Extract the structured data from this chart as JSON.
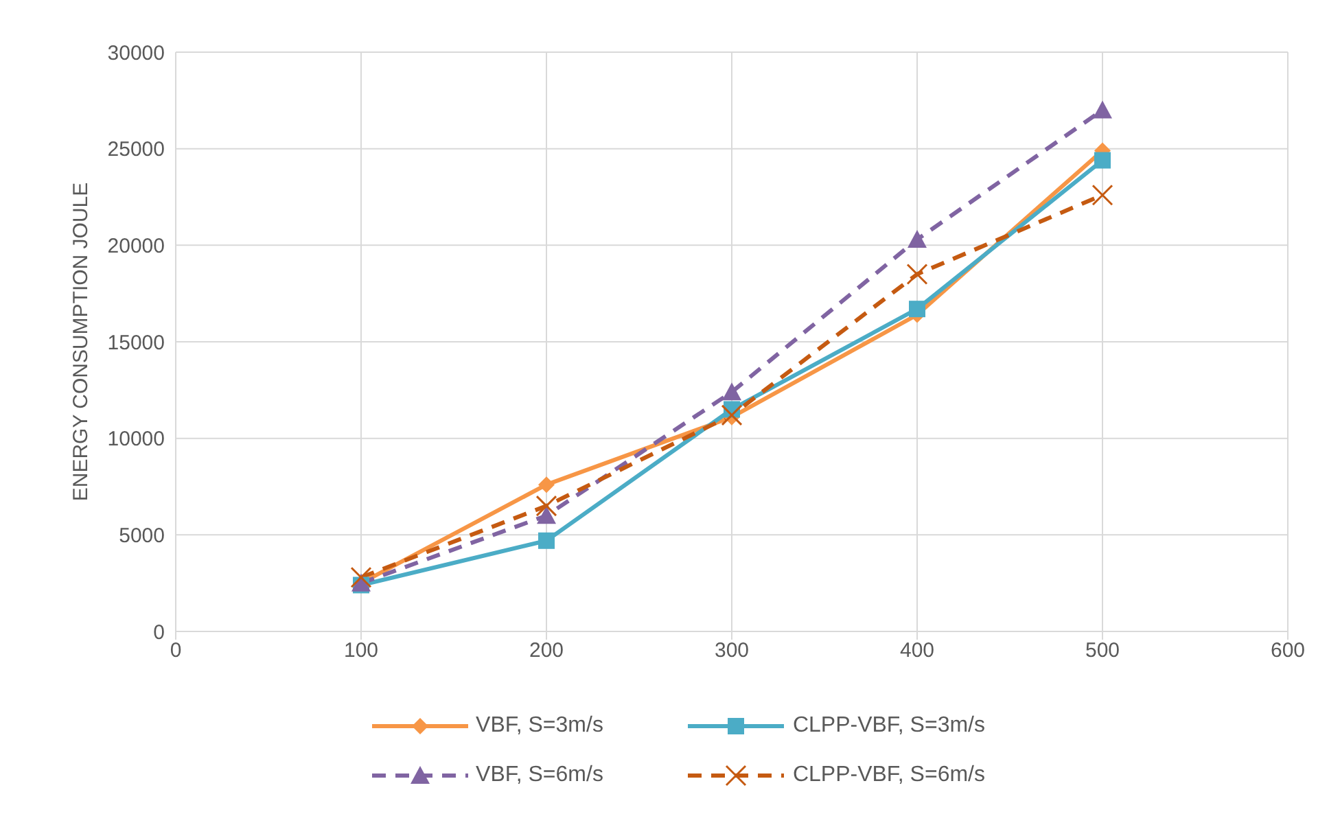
{
  "chart_data": {
    "type": "line",
    "ylabel": "ENERGY CONSUMPTION JOULE",
    "x": [
      100,
      200,
      300,
      400,
      500
    ],
    "series": [
      {
        "name": "VBF, S=3m/s",
        "color": "#f79646",
        "values": [
          2500,
          7600,
          11100,
          16400,
          24900
        ],
        "marker": "diamond",
        "line_style": "solid"
      },
      {
        "name": "CLPP-VBF, S=3m/s",
        "color": "#4bacc6",
        "values": [
          2400,
          4700,
          11500,
          16700,
          24400
        ],
        "marker": "square",
        "line_style": "solid"
      },
      {
        "name": "VBF,  S=6m/s",
        "color": "#8064a2",
        "values": [
          2500,
          6000,
          12400,
          20300,
          27000
        ],
        "marker": "triangle",
        "line_style": "dashed"
      },
      {
        "name": "CLPP-VBF, S=6m/s",
        "color": "#c55a11",
        "values": [
          2800,
          6500,
          11200,
          18500,
          22600
        ],
        "marker": "cross",
        "line_style": "dashed"
      }
    ],
    "xlim": [
      0,
      600
    ],
    "xticks": [
      0,
      100,
      200,
      300,
      400,
      500,
      600
    ],
    "ylim": [
      0,
      30000
    ],
    "yticks": [
      0,
      5000,
      10000,
      15000,
      20000,
      25000,
      30000
    ],
    "grid": true,
    "legend": "bottom"
  }
}
